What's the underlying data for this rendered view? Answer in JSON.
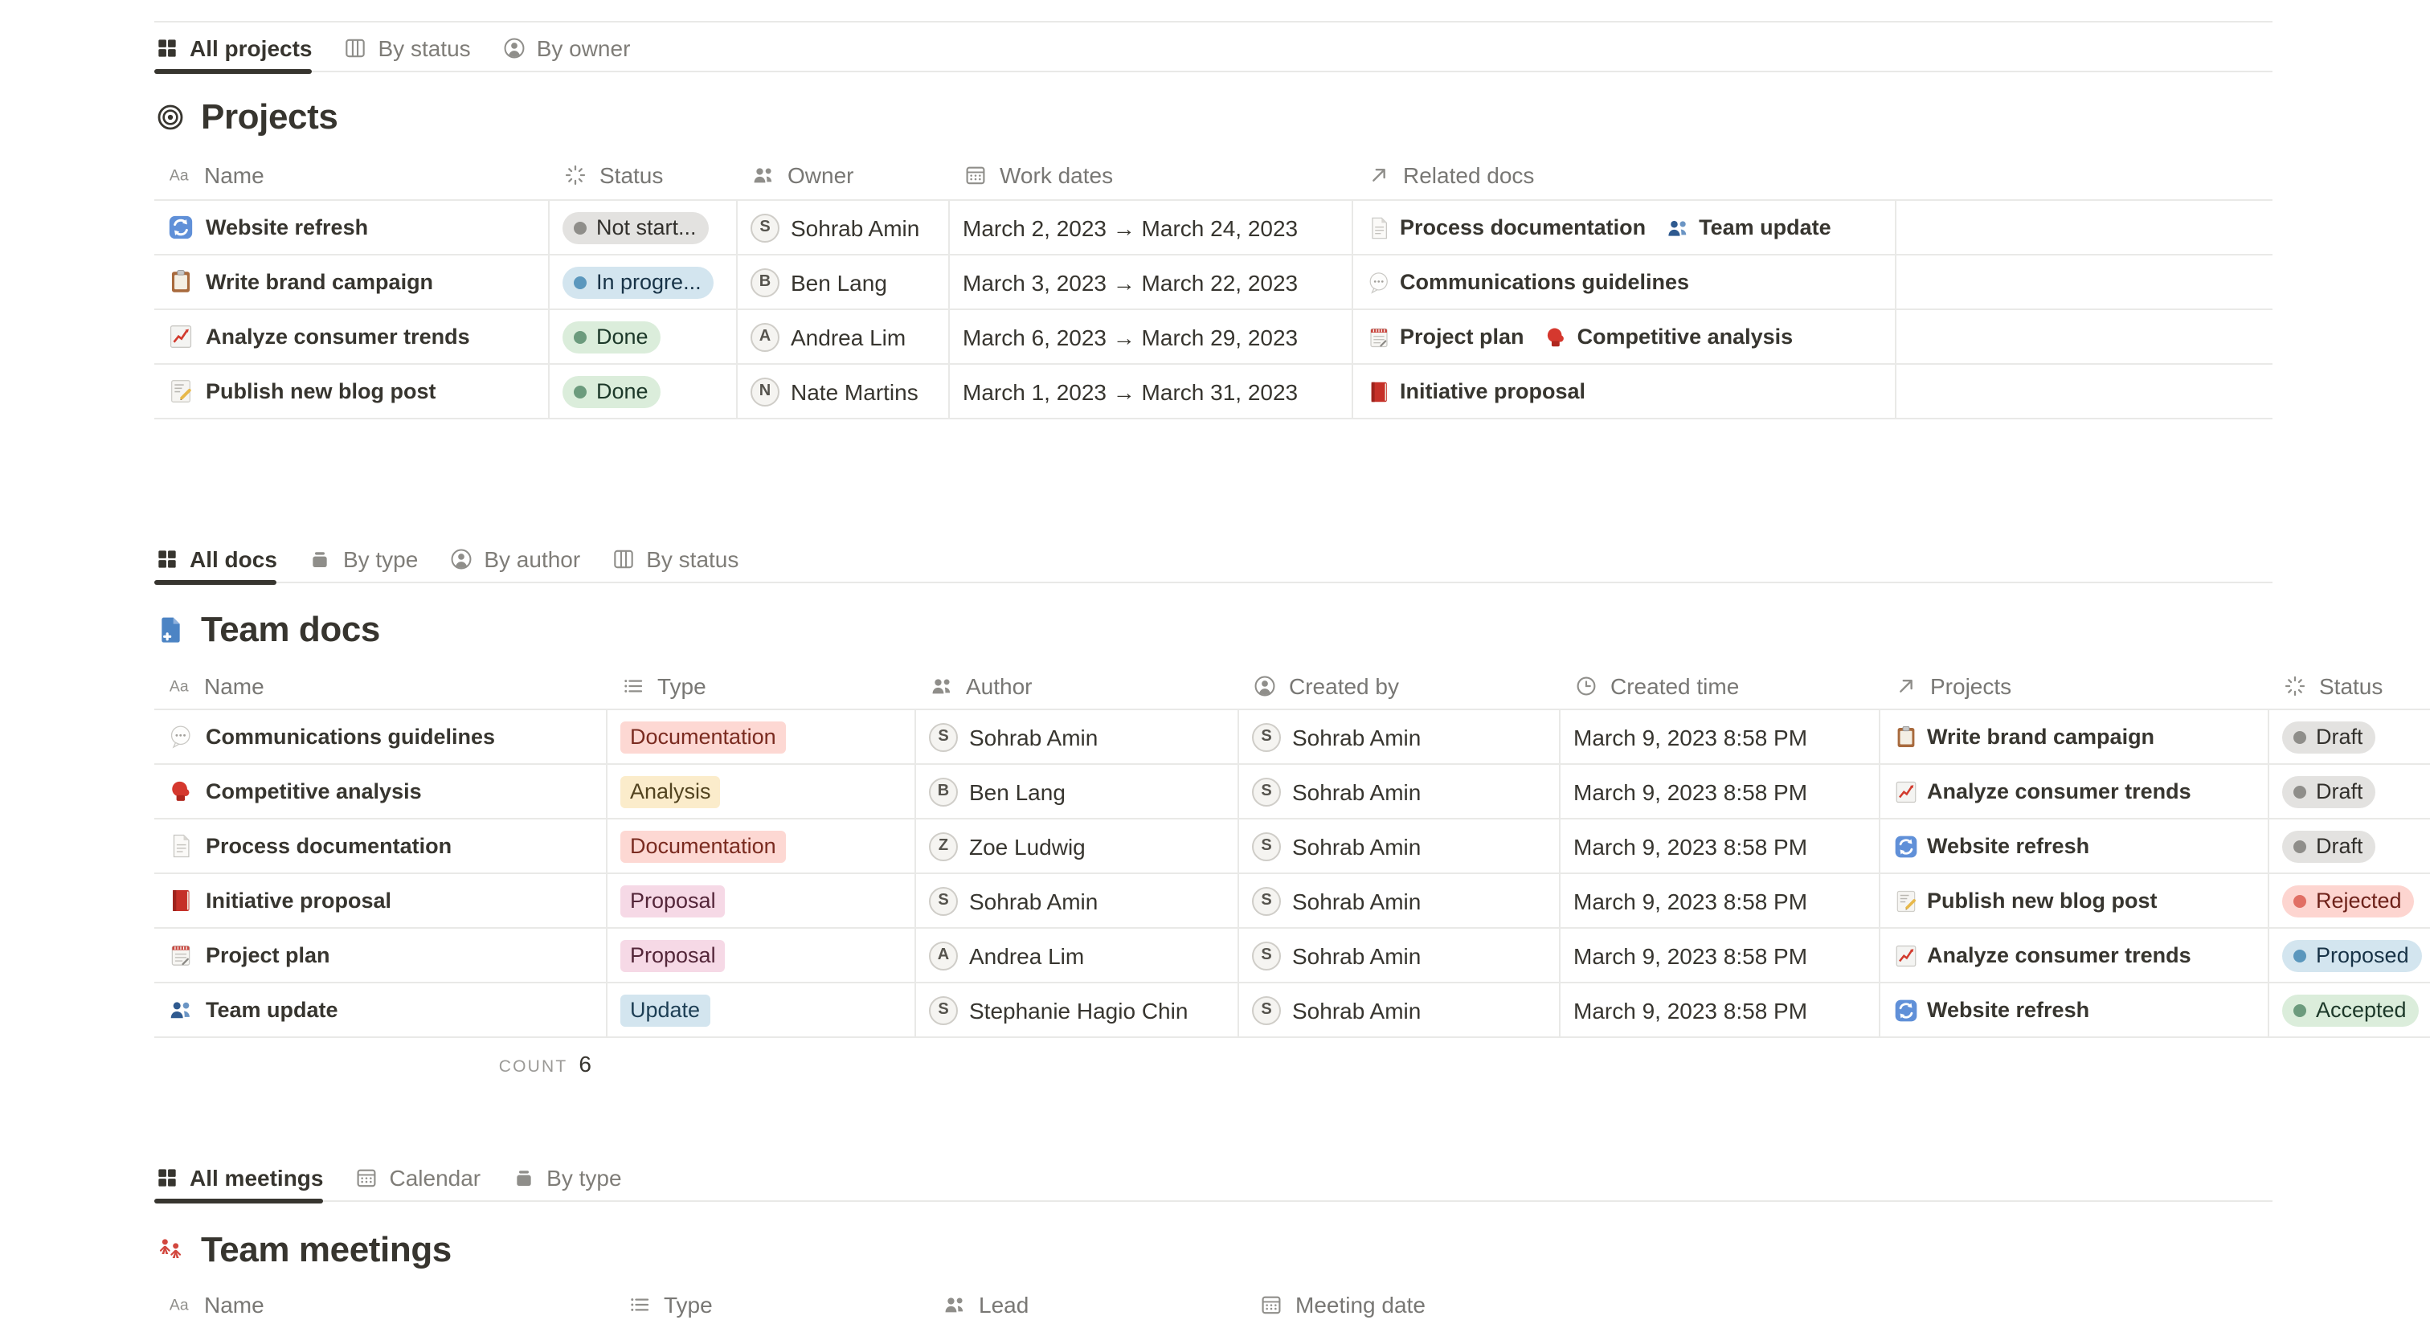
{
  "palette": {
    "page_bg": "#ffffff",
    "text": "#37352f",
    "secondary_text": "#787774",
    "icon_gray": "#8f8e8a",
    "divider": "#e9e9e7",
    "active_tab_underline": "#37352f",
    "status_colors": {
      "gray": {
        "bg": "#e3e2e0",
        "dot": "#8f8e8a",
        "text": "#32302c"
      },
      "blue": {
        "bg": "#d3e5ef",
        "dot": "#5b97bd",
        "text": "#183347"
      },
      "green": {
        "bg": "#dbeddb",
        "dot": "#6c9b7d",
        "text": "#1c3829"
      },
      "red": {
        "bg": "#fdd5d0",
        "dot": "#e16f64",
        "text": "#6e221a"
      }
    },
    "tag_colors": {
      "red": {
        "bg": "#fdd8d3",
        "text": "#7a2b20"
      },
      "yellow": {
        "bg": "#fbeccb",
        "text": "#52431f"
      },
      "pink": {
        "bg": "#f6d9e6",
        "text": "#542639"
      },
      "blue": {
        "bg": "#d3e5ef",
        "text": "#1d3e54"
      }
    }
  },
  "projects": {
    "tabs": [
      {
        "label": "All projects",
        "icon": "grid",
        "active": true
      },
      {
        "label": "By status",
        "icon": "board",
        "active": false
      },
      {
        "label": "By owner",
        "icon": "person-circle",
        "active": false
      }
    ],
    "title": "Projects",
    "title_icon": "target",
    "columns": [
      {
        "label": "Name",
        "icon": "aa"
      },
      {
        "label": "Status",
        "icon": "spinner"
      },
      {
        "label": "Owner",
        "icon": "people"
      },
      {
        "label": "Work dates",
        "icon": "calendar"
      },
      {
        "label": "Related docs",
        "icon": "arrow"
      }
    ],
    "rows": [
      {
        "icon": "refresh",
        "name": "Website refresh",
        "status": {
          "label": "Not start...",
          "color": "gray"
        },
        "owner": {
          "initial": "S",
          "name": "Sohrab Amin"
        },
        "dates": "March 2, 2023 → March 24, 2023",
        "related": [
          {
            "icon": "page",
            "label": "Process documentation"
          },
          {
            "icon": "people-blue",
            "label": "Team update"
          }
        ]
      },
      {
        "icon": "clipboard",
        "name": "Write brand campaign",
        "status": {
          "label": "In progre...",
          "color": "blue"
        },
        "owner": {
          "initial": "B",
          "name": "Ben Lang"
        },
        "dates": "March 3, 2023 → March 22, 2023",
        "related": [
          {
            "icon": "speech",
            "label": "Communications guidelines"
          }
        ]
      },
      {
        "icon": "chart",
        "name": "Analyze consumer trends",
        "status": {
          "label": "Done",
          "color": "green"
        },
        "owner": {
          "initial": "A",
          "name": "Andrea Lim"
        },
        "dates": "March 6, 2023 → March 29, 2023",
        "related": [
          {
            "icon": "notepad",
            "label": "Project plan"
          },
          {
            "icon": "glove",
            "label": "Competitive analysis"
          }
        ]
      },
      {
        "icon": "memo",
        "name": "Publish new blog post",
        "status": {
          "label": "Done",
          "color": "green"
        },
        "owner": {
          "initial": "N",
          "name": "Nate Martins"
        },
        "dates": "March 1, 2023 → March 31, 2023",
        "related": [
          {
            "icon": "book",
            "label": "Initiative proposal"
          }
        ]
      }
    ]
  },
  "docs": {
    "tabs": [
      {
        "label": "All docs",
        "icon": "grid",
        "active": true
      },
      {
        "label": "By type",
        "icon": "stack",
        "active": false
      },
      {
        "label": "By author",
        "icon": "person-circle",
        "active": false
      },
      {
        "label": "By status",
        "icon": "board",
        "active": false
      }
    ],
    "title": "Team docs",
    "title_icon": "docadd",
    "columns": [
      {
        "label": "Name",
        "icon": "aa"
      },
      {
        "label": "Type",
        "icon": "list"
      },
      {
        "label": "Author",
        "icon": "people"
      },
      {
        "label": "Created by",
        "icon": "person-circle"
      },
      {
        "label": "Created time",
        "icon": "clock"
      },
      {
        "label": "Projects",
        "icon": "arrow"
      },
      {
        "label": "Status",
        "icon": "spinner"
      }
    ],
    "rows": [
      {
        "icon": "speech",
        "name": "Communications guidelines",
        "type": {
          "label": "Documentation",
          "color": "red"
        },
        "author": {
          "initial": "S",
          "name": "Sohrab Amin"
        },
        "created_by": {
          "initial": "S",
          "name": "Sohrab Amin"
        },
        "created_time": "March 9, 2023 8:58 PM",
        "project": {
          "icon": "clipboard",
          "label": "Write brand campaign"
        },
        "status": {
          "label": "Draft",
          "color": "gray"
        }
      },
      {
        "icon": "glove",
        "name": "Competitive analysis",
        "type": {
          "label": "Analysis",
          "color": "yellow"
        },
        "author": {
          "initial": "B",
          "name": "Ben Lang"
        },
        "created_by": {
          "initial": "S",
          "name": "Sohrab Amin"
        },
        "created_time": "March 9, 2023 8:58 PM",
        "project": {
          "icon": "chart",
          "label": "Analyze consumer trends"
        },
        "status": {
          "label": "Draft",
          "color": "gray"
        }
      },
      {
        "icon": "page",
        "name": "Process documentation",
        "type": {
          "label": "Documentation",
          "color": "red"
        },
        "author": {
          "initial": "Z",
          "name": "Zoe Ludwig"
        },
        "created_by": {
          "initial": "S",
          "name": "Sohrab Amin"
        },
        "created_time": "March 9, 2023 8:58 PM",
        "project": {
          "icon": "refresh",
          "label": "Website refresh"
        },
        "status": {
          "label": "Draft",
          "color": "gray"
        }
      },
      {
        "icon": "book",
        "name": "Initiative proposal",
        "type": {
          "label": "Proposal",
          "color": "pink"
        },
        "author": {
          "initial": "S",
          "name": "Sohrab Amin"
        },
        "created_by": {
          "initial": "S",
          "name": "Sohrab Amin"
        },
        "created_time": "March 9, 2023 8:58 PM",
        "project": {
          "icon": "memo",
          "label": "Publish new blog post"
        },
        "status": {
          "label": "Rejected",
          "color": "red"
        }
      },
      {
        "icon": "notepad",
        "name": "Project plan",
        "type": {
          "label": "Proposal",
          "color": "pink"
        },
        "author": {
          "initial": "A",
          "name": "Andrea Lim"
        },
        "created_by": {
          "initial": "S",
          "name": "Sohrab Amin"
        },
        "created_time": "March 9, 2023 8:58 PM",
        "project": {
          "icon": "chart",
          "label": "Analyze consumer trends"
        },
        "status": {
          "label": "Proposed",
          "color": "blue"
        }
      },
      {
        "icon": "people-blue",
        "name": "Team update",
        "type": {
          "label": "Update",
          "color": "blue"
        },
        "author": {
          "initial": "S",
          "name": "Stephanie Hagio Chin"
        },
        "created_by": {
          "initial": "S",
          "name": "Sohrab Amin"
        },
        "created_time": "March 9, 2023 8:58 PM",
        "project": {
          "icon": "refresh",
          "label": "Website refresh"
        },
        "status": {
          "label": "Accepted",
          "color": "green"
        }
      }
    ],
    "count_label": "COUNT",
    "count_value": "6"
  },
  "meetings": {
    "tabs": [
      {
        "label": "All meetings",
        "icon": "grid",
        "active": true
      },
      {
        "label": "Calendar",
        "icon": "calendar",
        "active": false
      },
      {
        "label": "By type",
        "icon": "stack",
        "active": false
      }
    ],
    "title": "Team meetings",
    "title_icon": "meet",
    "columns": [
      {
        "label": "Name",
        "icon": "aa"
      },
      {
        "label": "Type",
        "icon": "list"
      },
      {
        "label": "Lead",
        "icon": "people"
      },
      {
        "label": "Meeting date",
        "icon": "calendar"
      }
    ]
  }
}
